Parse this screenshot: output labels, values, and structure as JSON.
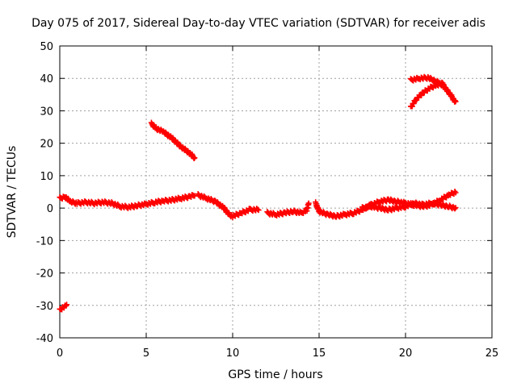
{
  "chart_data": {
    "type": "scatter",
    "title": "Day 075 of 2017, Sidereal Day-to-day VTEC variation (SDTVAR) for receiver adis",
    "xlabel": "GPS time / hours",
    "ylabel": "SDTVAR / TECUs",
    "xlim": [
      0,
      25
    ],
    "ylim": [
      -40,
      50
    ],
    "xticks": [
      0,
      5,
      10,
      15,
      20,
      25
    ],
    "yticks": [
      -40,
      -30,
      -20,
      -10,
      0,
      10,
      20,
      30,
      40,
      50
    ],
    "grid": true,
    "marker": "plus",
    "color": "#ff0000",
    "series": [
      {
        "name": "segment-1",
        "x": [
          0.0,
          0.2,
          0.4
        ],
        "y": [
          -31.5,
          -30.5,
          -30.0
        ]
      },
      {
        "name": "segment-2",
        "x": [
          0.0,
          0.3,
          0.6,
          1.0,
          1.5,
          2.0,
          2.5,
          3.0,
          3.5,
          4.0,
          4.5,
          5.0,
          5.5,
          6.0,
          6.5,
          7.0,
          7.5,
          7.8
        ],
        "y": [
          3.0,
          3.5,
          2.0,
          1.5,
          1.8,
          1.5,
          1.8,
          1.5,
          0.5,
          0.3,
          0.8,
          1.2,
          1.8,
          2.2,
          2.5,
          3.0,
          3.5,
          4.0
        ]
      },
      {
        "name": "segment-3",
        "x": [
          5.3,
          5.6,
          6.0,
          6.5,
          7.0,
          7.5,
          7.8
        ],
        "y": [
          26.0,
          24.5,
          23.5,
          21.5,
          19.0,
          17.0,
          15.5
        ]
      },
      {
        "name": "segment-4",
        "x": [
          8.0,
          8.5,
          9.0,
          9.5,
          9.8,
          10.0,
          10.5,
          11.0,
          11.5
        ],
        "y": [
          4.0,
          3.0,
          2.0,
          0.0,
          -2.0,
          -2.5,
          -1.5,
          -0.5,
          -0.5
        ]
      },
      {
        "name": "segment-5",
        "x": [
          12.0,
          12.5,
          13.0,
          13.5,
          14.0,
          14.3,
          14.4
        ],
        "y": [
          -1.5,
          -2.0,
          -1.5,
          -1.0,
          -1.5,
          -0.5,
          1.5
        ]
      },
      {
        "name": "segment-6",
        "x": [
          14.8,
          15.0,
          15.5,
          16.0,
          16.5,
          17.0,
          17.5,
          18.0,
          18.5,
          19.0,
          19.5,
          20.0,
          20.5,
          21.0,
          21.5,
          22.0,
          22.5,
          22.9
        ],
        "y": [
          1.5,
          -1.0,
          -2.0,
          -2.5,
          -2.0,
          -1.5,
          -0.5,
          1.0,
          2.0,
          2.5,
          2.0,
          1.5,
          1.0,
          0.5,
          1.0,
          2.5,
          4.0,
          5.0
        ]
      },
      {
        "name": "segment-7",
        "x": [
          17.5,
          18.0,
          18.5,
          19.0,
          19.5,
          20.0,
          20.5,
          21.0,
          21.5,
          22.0,
          22.5,
          22.9
        ],
        "y": [
          0.0,
          0.5,
          0.0,
          -0.5,
          0.0,
          0.5,
          1.5,
          1.0,
          1.5,
          1.0,
          0.5,
          0.0
        ]
      },
      {
        "name": "segment-8",
        "x": [
          20.3,
          20.8,
          21.3,
          21.8,
          22.0,
          22.3,
          22.6,
          22.9
        ],
        "y": [
          39.5,
          40.0,
          40.2,
          39.0,
          38.5,
          37.0,
          35.0,
          32.5
        ]
      },
      {
        "name": "segment-9",
        "x": [
          20.3,
          20.6,
          21.0,
          21.4,
          21.8,
          22.2
        ],
        "y": [
          31.0,
          33.5,
          35.5,
          37.0,
          38.0,
          38.5
        ]
      }
    ]
  }
}
